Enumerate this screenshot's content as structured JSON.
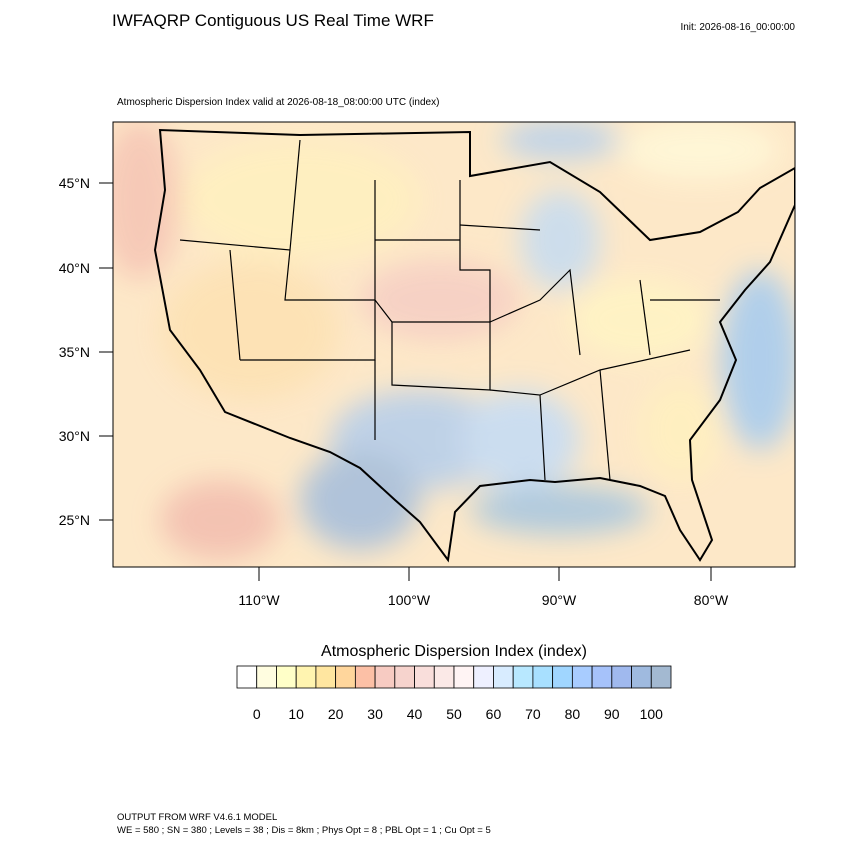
{
  "header": {
    "title": "IWFAQRP Contiguous US Real Time WRF",
    "init": "Init: 2026-08-16_00:00:00"
  },
  "map": {
    "subtitle": "Atmospheric Dispersion Index valid at 2026-08-18_08:00:00 UTC   (index)",
    "lat_labels": [
      "45°N",
      "40°N",
      "35°N",
      "30°N",
      "25°N"
    ],
    "lon_labels": [
      "110°W",
      "100°W",
      "90°W",
      "80°W"
    ]
  },
  "colorbar": {
    "title": "Atmospheric Dispersion Index  (index)",
    "labels": [
      0,
      10,
      20,
      30,
      40,
      50,
      60,
      70,
      80,
      90,
      100
    ],
    "colors": [
      "#ffffff",
      "#fffde0",
      "#ffffc8",
      "#fff4b0",
      "#ffe6a0",
      "#ffd69c",
      "#fcc0a6",
      "#f7cbc2",
      "#f6d3cd",
      "#f9dedb",
      "#fbe9e7",
      "#fff4f4",
      "#eef0ff",
      "#d8ecff",
      "#b8e8ff",
      "#a8e0ff",
      "#a0d6ff",
      "#a8ccff",
      "#a6c2fa",
      "#a0b9ee",
      "#9fbadf",
      "#a3b9d1"
    ]
  },
  "footer": {
    "line1": "OUTPUT FROM WRF V4.6.1 MODEL",
    "line2": "WE = 580 ; SN = 380 ; Levels = 38 ; Dis = 8km ; Phys Opt = 8 ; PBL Opt = 1 ; Cu Opt = 5"
  }
}
